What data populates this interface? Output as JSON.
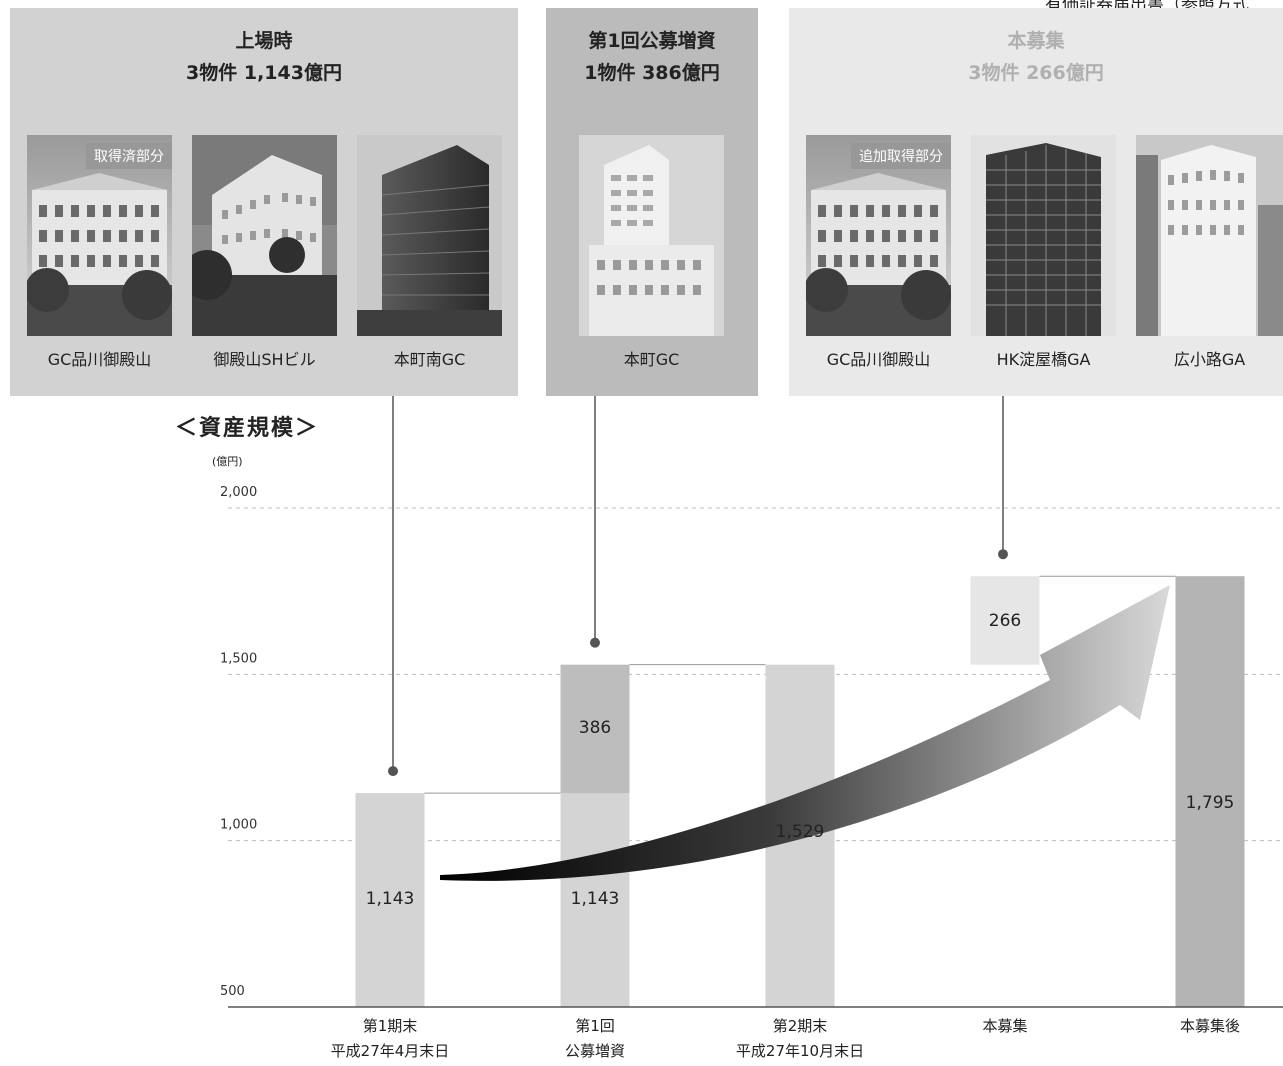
{
  "top_note": "有価証券届出書（参照方式",
  "panels": [
    {
      "title": "上場時",
      "subtitle": "3物件 1,143億円",
      "properties": [
        {
          "name": "GC品川御殿山",
          "badge": "取得済部分"
        },
        {
          "name": "御殿山SHビル",
          "badge": ""
        },
        {
          "name": "本町南GC",
          "badge": ""
        }
      ]
    },
    {
      "title": "第1回公募増資",
      "subtitle": "1物件 386億円",
      "properties": [
        {
          "name": "本町GC",
          "badge": ""
        }
      ]
    },
    {
      "title": "本募集",
      "subtitle": "3物件 266億円",
      "properties": [
        {
          "name": "GC品川御殿山",
          "badge": "追加取得部分"
        },
        {
          "name": "HK淀屋橋GA",
          "badge": ""
        },
        {
          "name": "広小路GA",
          "badge": ""
        }
      ]
    }
  ],
  "chart_data": {
    "type": "bar",
    "title": "＜資産規模＞",
    "ylabel": "(億円)",
    "ylim": [
      500,
      2000
    ],
    "yticks": [
      500,
      1000,
      1500,
      2000
    ],
    "ytick_labels": [
      "500",
      "1,000",
      "1,500",
      "2,000"
    ],
    "grid": "dashed",
    "categories": [
      [
        "第1期末",
        "平成27年4月末日"
      ],
      [
        "第1回",
        "公募増資"
      ],
      [
        "第2期末",
        "平成27年10月末日"
      ],
      [
        "本募集",
        ""
      ],
      [
        "本募集後",
        ""
      ]
    ],
    "segments": [
      {
        "cat": 0,
        "base": 0,
        "value": 1143,
        "label": "1,143",
        "color": "#d4d4d4"
      },
      {
        "cat": 1,
        "base": 0,
        "value": 1143,
        "label": "1,143",
        "color": "#d4d4d4"
      },
      {
        "cat": 1,
        "base": 1143,
        "value": 386,
        "label": "386",
        "color": "#bdbdbd"
      },
      {
        "cat": 2,
        "base": 0,
        "value": 1529,
        "label": "1,529",
        "color": "#d4d4d4"
      },
      {
        "cat": 3,
        "base": 1529,
        "value": 266,
        "label": "266",
        "color": "#e6e6e6"
      },
      {
        "cat": 4,
        "base": 0,
        "value": 1795,
        "label": "1,795",
        "color": "#b4b4b4"
      }
    ]
  }
}
